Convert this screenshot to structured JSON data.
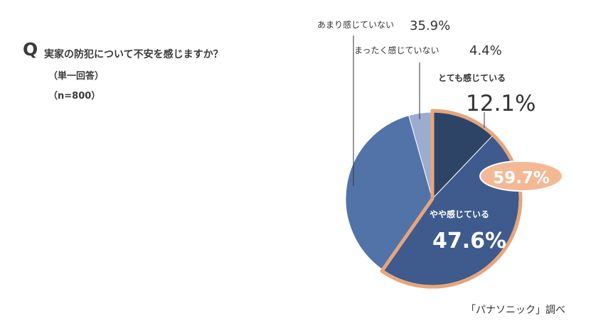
{
  "question": {
    "mark": "Q",
    "title": "実家の防犯について不安を感じますか？",
    "answer_type": "（単一回答）",
    "sample_size": "（n=800）"
  },
  "source": "「パナソニック」調べ",
  "colors": {
    "highlight_border": "#e7a57b",
    "highlight_fill": "#f3b994",
    "text": "#333333"
  },
  "chart_data": {
    "type": "pie",
    "start": "12 o'clock",
    "direction": "clockwise",
    "slices": [
      {
        "label": "とても感じている",
        "value": 12.1,
        "value_text": "12.1%",
        "color": "#2e4467",
        "highlighted": true
      },
      {
        "label": "やや感じている",
        "value": 47.6,
        "value_text": "47.6%",
        "color": "#3f5a8c",
        "highlighted": true
      },
      {
        "label": "あまり感じていない",
        "value": 35.9,
        "value_text": "35.9%",
        "color": "#5273a8",
        "highlighted": false
      },
      {
        "label": "まったく感じていない",
        "value": 4.4,
        "value_text": "4.4%",
        "color": "#9aadcf",
        "highlighted": false
      }
    ],
    "combined_highlight": {
      "value": 59.7,
      "value_text": "59.7%"
    }
  }
}
